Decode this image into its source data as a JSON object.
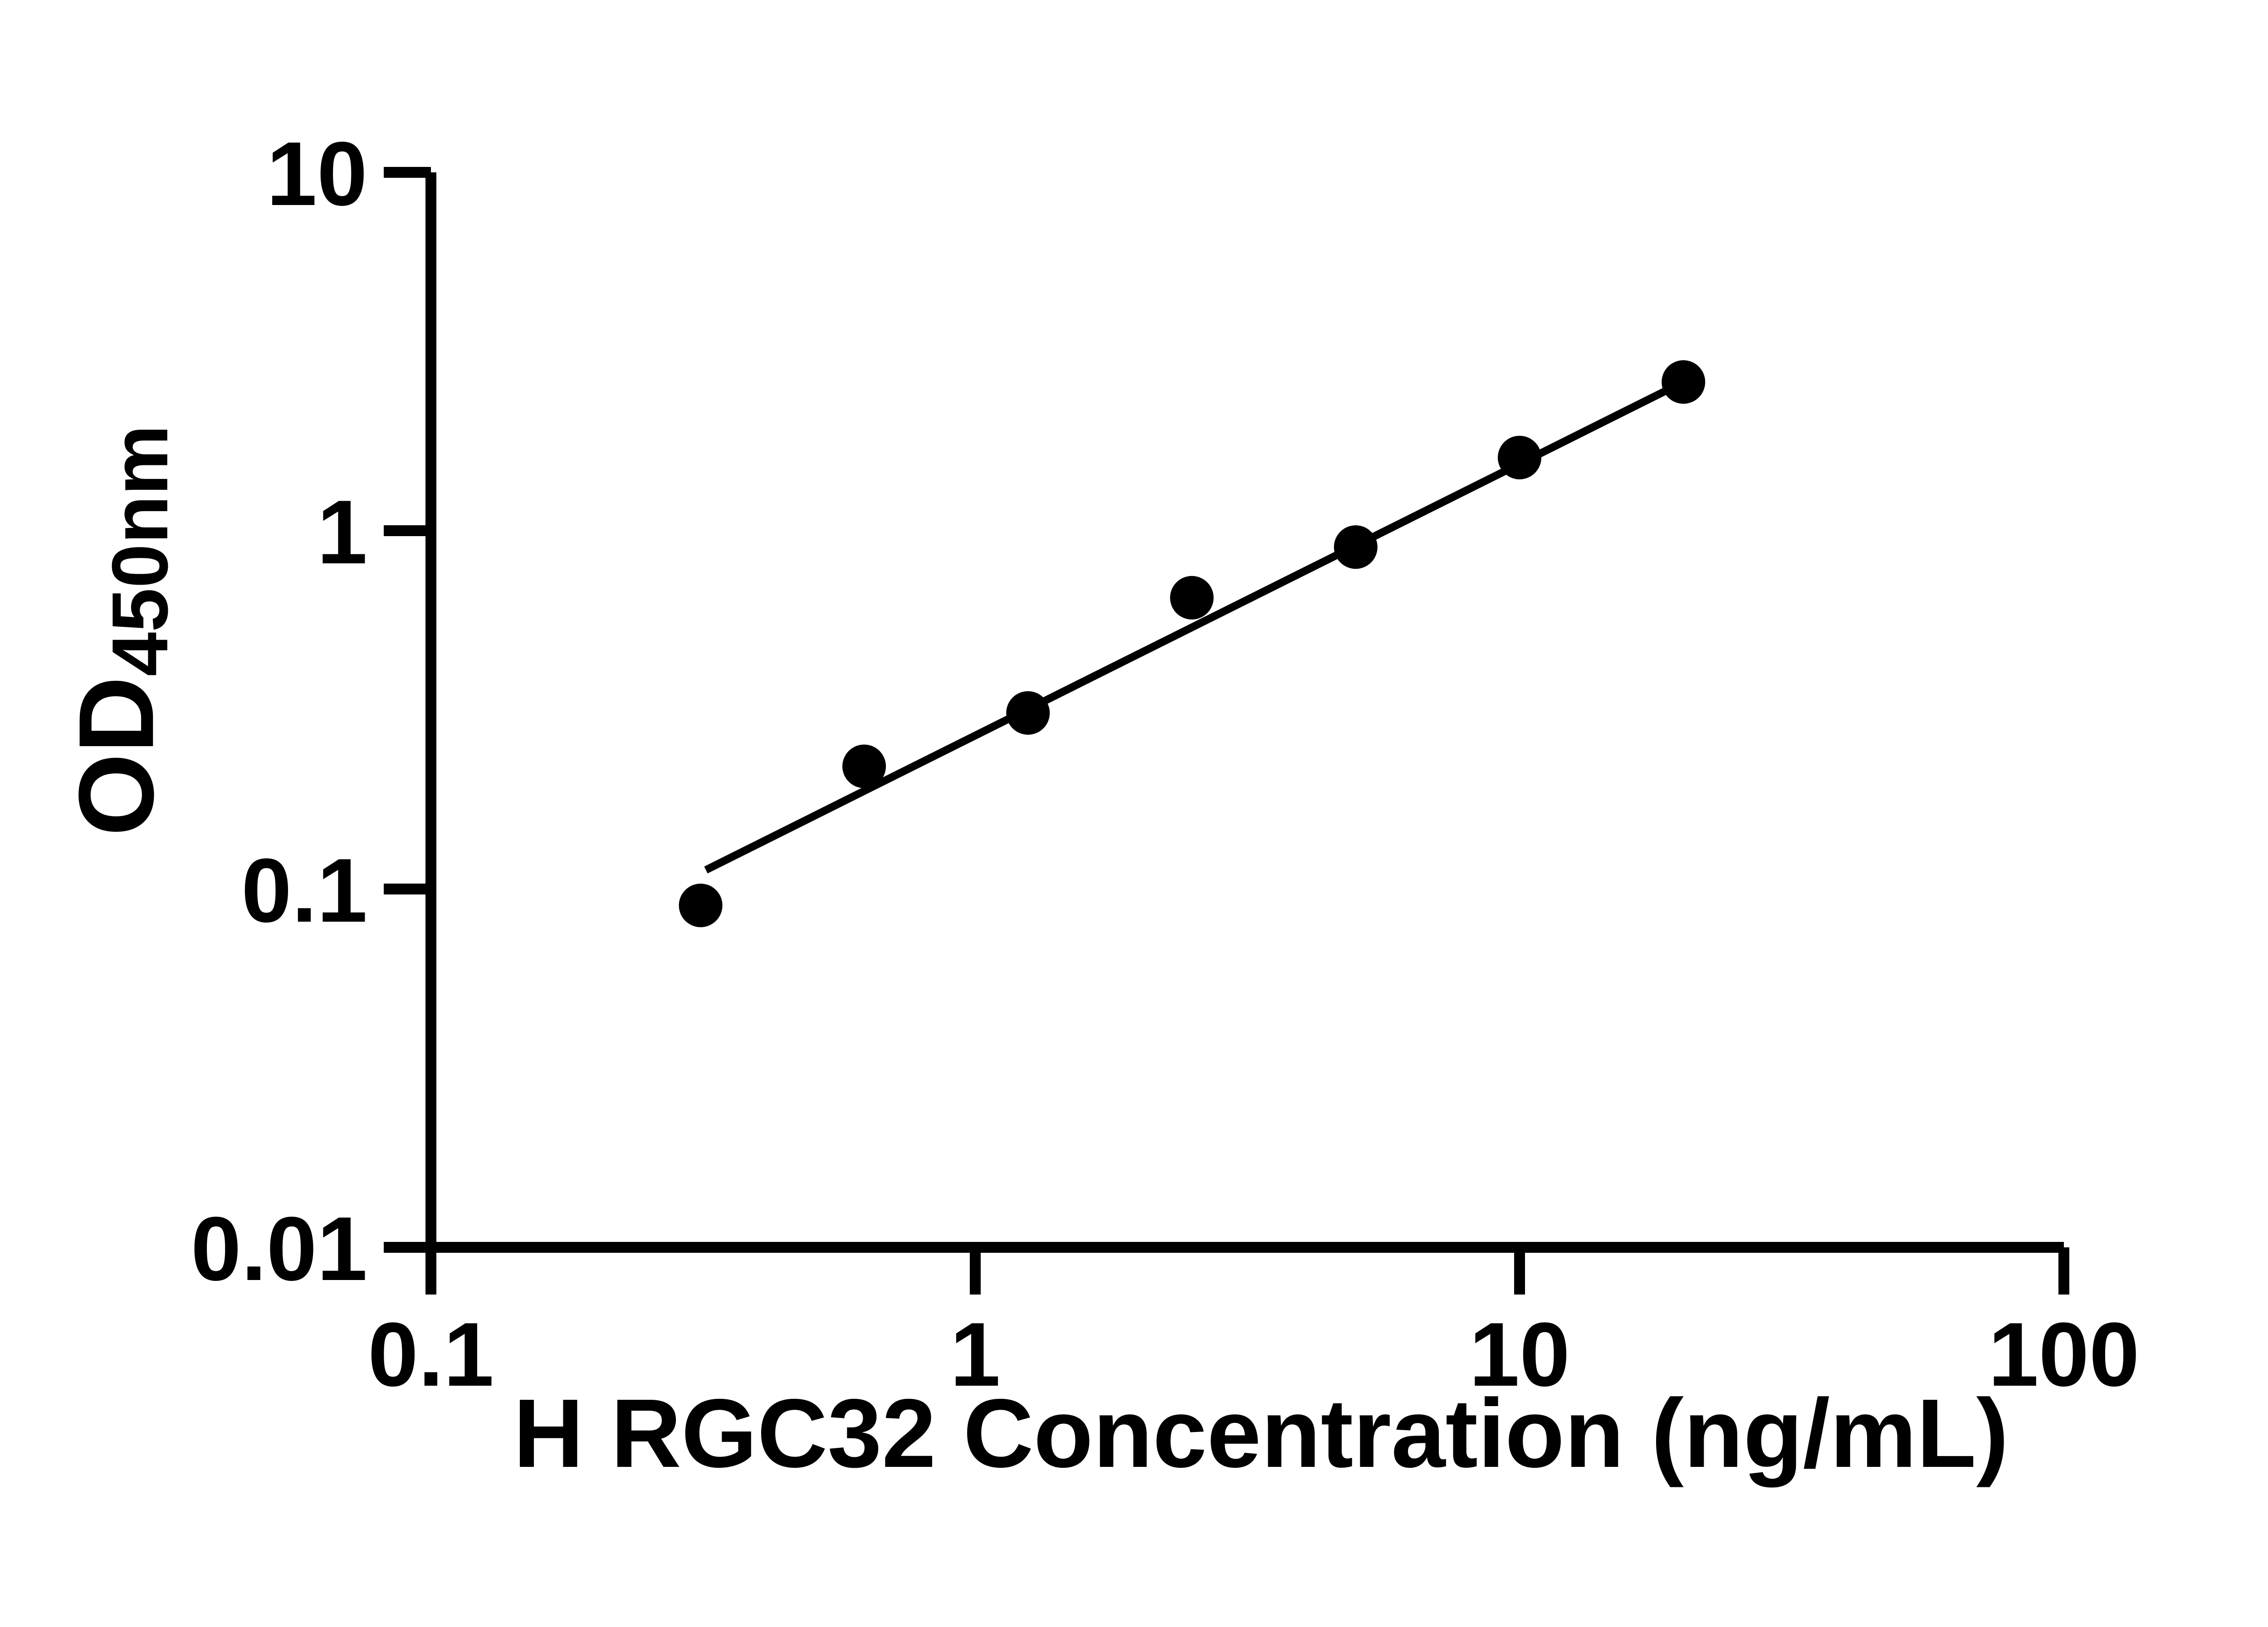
{
  "chart_data": {
    "type": "scatter",
    "title": "",
    "xlabel": "H RGC32 Concentration (ng/mL)",
    "ylabel_main": "OD",
    "ylabel_sub": "450nm",
    "x_scale": "log",
    "y_scale": "log",
    "xlim": [
      0.1,
      100
    ],
    "ylim": [
      0.01,
      10
    ],
    "grid": "off",
    "legend": "none",
    "x_ticks": [
      {
        "value": 0.1,
        "label": "0.1"
      },
      {
        "value": 1,
        "label": "1"
      },
      {
        "value": 10,
        "label": "10"
      },
      {
        "value": 100,
        "label": "100"
      }
    ],
    "y_ticks": [
      {
        "value": 10,
        "label": "10"
      },
      {
        "value": 1,
        "label": "1"
      },
      {
        "value": 0.1,
        "label": "0.1"
      },
      {
        "value": 0.01,
        "label": "0.01"
      }
    ],
    "series": [
      {
        "name": "standard-curve-points",
        "x": [
          0.313,
          0.625,
          1.25,
          2.5,
          5,
          10,
          20
        ],
        "y": [
          0.09,
          0.22,
          0.31,
          0.65,
          0.9,
          1.6,
          2.6
        ]
      }
    ],
    "fit_line": {
      "x": [
        0.32,
        20
      ],
      "y": [
        0.113,
        2.6
      ]
    },
    "colors": {
      "points": "#000000",
      "line": "#000000",
      "axis": "#000000",
      "background": "#ffffff"
    }
  }
}
